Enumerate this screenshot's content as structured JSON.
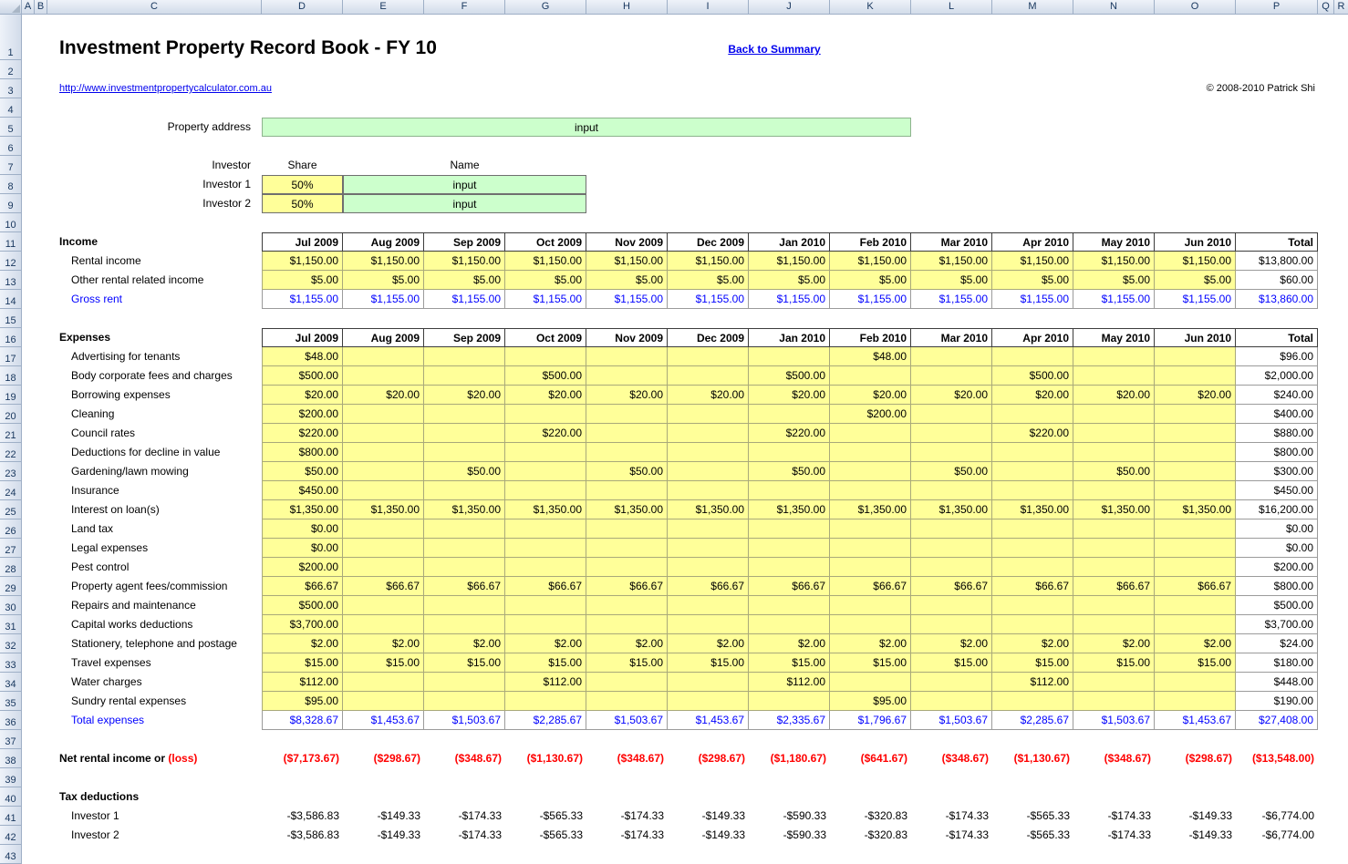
{
  "app": {
    "columns": [
      "A",
      "B",
      "C",
      "D",
      "E",
      "F",
      "G",
      "H",
      "I",
      "J",
      "K",
      "L",
      "M",
      "N",
      "O",
      "P",
      "Q",
      "R"
    ],
    "visible_rows": 43
  },
  "colors": {
    "input_yellow": "#FFFF99",
    "input_green": "#CCFFCC",
    "total_blue": "#0000FF",
    "loss_red": "#FF0000",
    "link_blue": "#0000EE"
  },
  "header": {
    "title": "Investment Property Record Book - FY 10",
    "back_link": "Back to Summary",
    "website": "http://www.investmentpropertycalculator.com.au",
    "copyright": "© 2008-2010 Patrick Shi"
  },
  "property": {
    "label": "Property address",
    "value": "input"
  },
  "investors": {
    "header_investor": "Investor",
    "header_share": "Share",
    "header_name": "Name",
    "rows": [
      {
        "label": "Investor 1",
        "share": "50%",
        "name": "input"
      },
      {
        "label": "Investor 2",
        "share": "50%",
        "name": "input"
      }
    ]
  },
  "months": [
    "Jul 2009",
    "Aug 2009",
    "Sep 2009",
    "Oct 2009",
    "Nov 2009",
    "Dec 2009",
    "Jan 2010",
    "Feb 2010",
    "Mar 2010",
    "Apr 2010",
    "May 2010",
    "Jun 2010"
  ],
  "total_label": "Total",
  "income": {
    "section_label": "Income",
    "rows": [
      {
        "label": "Rental income",
        "style": "input",
        "values": [
          "$1,150.00",
          "$1,150.00",
          "$1,150.00",
          "$1,150.00",
          "$1,150.00",
          "$1,150.00",
          "$1,150.00",
          "$1,150.00",
          "$1,150.00",
          "$1,150.00",
          "$1,150.00",
          "$1,150.00"
        ],
        "total": "$13,800.00"
      },
      {
        "label": "Other rental related income",
        "style": "input",
        "values": [
          "$5.00",
          "$5.00",
          "$5.00",
          "$5.00",
          "$5.00",
          "$5.00",
          "$5.00",
          "$5.00",
          "$5.00",
          "$5.00",
          "$5.00",
          "$5.00"
        ],
        "total": "$60.00"
      },
      {
        "label": "Gross rent",
        "style": "subtotal",
        "values": [
          "$1,155.00",
          "$1,155.00",
          "$1,155.00",
          "$1,155.00",
          "$1,155.00",
          "$1,155.00",
          "$1,155.00",
          "$1,155.00",
          "$1,155.00",
          "$1,155.00",
          "$1,155.00",
          "$1,155.00"
        ],
        "total": "$13,860.00"
      }
    ]
  },
  "expenses": {
    "section_label": "Expenses",
    "rows": [
      {
        "label": "Advertising for tenants",
        "style": "input",
        "values": [
          "$48.00",
          "",
          "",
          "",
          "",
          "",
          "",
          "$48.00",
          "",
          "",
          "",
          ""
        ],
        "total": "$96.00"
      },
      {
        "label": "Body corporate fees and charges",
        "style": "input",
        "values": [
          "$500.00",
          "",
          "",
          "$500.00",
          "",
          "",
          "$500.00",
          "",
          "",
          "$500.00",
          "",
          ""
        ],
        "total": "$2,000.00"
      },
      {
        "label": "Borrowing expenses",
        "style": "input",
        "values": [
          "$20.00",
          "$20.00",
          "$20.00",
          "$20.00",
          "$20.00",
          "$20.00",
          "$20.00",
          "$20.00",
          "$20.00",
          "$20.00",
          "$20.00",
          "$20.00"
        ],
        "total": "$240.00"
      },
      {
        "label": "Cleaning",
        "style": "input",
        "values": [
          "$200.00",
          "",
          "",
          "",
          "",
          "",
          "",
          "$200.00",
          "",
          "",
          "",
          ""
        ],
        "total": "$400.00"
      },
      {
        "label": "Council rates",
        "style": "input",
        "values": [
          "$220.00",
          "",
          "",
          "$220.00",
          "",
          "",
          "$220.00",
          "",
          "",
          "$220.00",
          "",
          ""
        ],
        "total": "$880.00"
      },
      {
        "label": "Deductions for decline in value",
        "style": "input",
        "values": [
          "$800.00",
          "",
          "",
          "",
          "",
          "",
          "",
          "",
          "",
          "",
          "",
          ""
        ],
        "total": "$800.00"
      },
      {
        "label": "Gardening/lawn mowing",
        "style": "input",
        "values": [
          "$50.00",
          "",
          "$50.00",
          "",
          "$50.00",
          "",
          "$50.00",
          "",
          "$50.00",
          "",
          "$50.00",
          ""
        ],
        "total": "$300.00"
      },
      {
        "label": "Insurance",
        "style": "input",
        "values": [
          "$450.00",
          "",
          "",
          "",
          "",
          "",
          "",
          "",
          "",
          "",
          "",
          ""
        ],
        "total": "$450.00"
      },
      {
        "label": "Interest on loan(s)",
        "style": "input",
        "values": [
          "$1,350.00",
          "$1,350.00",
          "$1,350.00",
          "$1,350.00",
          "$1,350.00",
          "$1,350.00",
          "$1,350.00",
          "$1,350.00",
          "$1,350.00",
          "$1,350.00",
          "$1,350.00",
          "$1,350.00"
        ],
        "total": "$16,200.00"
      },
      {
        "label": "Land tax",
        "style": "input",
        "values": [
          "$0.00",
          "",
          "",
          "",
          "",
          "",
          "",
          "",
          "",
          "",
          "",
          ""
        ],
        "total": "$0.00"
      },
      {
        "label": "Legal expenses",
        "style": "input",
        "values": [
          "$0.00",
          "",
          "",
          "",
          "",
          "",
          "",
          "",
          "",
          "",
          "",
          ""
        ],
        "total": "$0.00"
      },
      {
        "label": "Pest control",
        "style": "input",
        "values": [
          "$200.00",
          "",
          "",
          "",
          "",
          "",
          "",
          "",
          "",
          "",
          "",
          ""
        ],
        "total": "$200.00"
      },
      {
        "label": "Property agent fees/commission",
        "style": "input",
        "values": [
          "$66.67",
          "$66.67",
          "$66.67",
          "$66.67",
          "$66.67",
          "$66.67",
          "$66.67",
          "$66.67",
          "$66.67",
          "$66.67",
          "$66.67",
          "$66.67"
        ],
        "total": "$800.00"
      },
      {
        "label": "Repairs and maintenance",
        "style": "input",
        "values": [
          "$500.00",
          "",
          "",
          "",
          "",
          "",
          "",
          "",
          "",
          "",
          "",
          ""
        ],
        "total": "$500.00"
      },
      {
        "label": "Capital works deductions",
        "style": "input",
        "values": [
          "$3,700.00",
          "",
          "",
          "",
          "",
          "",
          "",
          "",
          "",
          "",
          "",
          ""
        ],
        "total": "$3,700.00"
      },
      {
        "label": "Stationery, telephone and postage",
        "style": "input",
        "values": [
          "$2.00",
          "$2.00",
          "$2.00",
          "$2.00",
          "$2.00",
          "$2.00",
          "$2.00",
          "$2.00",
          "$2.00",
          "$2.00",
          "$2.00",
          "$2.00"
        ],
        "total": "$24.00"
      },
      {
        "label": "Travel expenses",
        "style": "input",
        "values": [
          "$15.00",
          "$15.00",
          "$15.00",
          "$15.00",
          "$15.00",
          "$15.00",
          "$15.00",
          "$15.00",
          "$15.00",
          "$15.00",
          "$15.00",
          "$15.00"
        ],
        "total": "$180.00"
      },
      {
        "label": "Water charges",
        "style": "input",
        "values": [
          "$112.00",
          "",
          "",
          "$112.00",
          "",
          "",
          "$112.00",
          "",
          "",
          "$112.00",
          "",
          ""
        ],
        "total": "$448.00"
      },
      {
        "label": "Sundry rental expenses",
        "style": "input",
        "values": [
          "$95.00",
          "",
          "",
          "",
          "",
          "",
          "",
          "$95.00",
          "",
          "",
          "",
          ""
        ],
        "total": "$190.00"
      },
      {
        "label": "Total expenses",
        "style": "subtotal",
        "values": [
          "$8,328.67",
          "$1,453.67",
          "$1,503.67",
          "$2,285.67",
          "$1,503.67",
          "$1,453.67",
          "$2,335.67",
          "$1,796.67",
          "$1,503.67",
          "$2,285.67",
          "$1,503.67",
          "$1,453.67"
        ],
        "total": "$27,408.00"
      }
    ]
  },
  "net": {
    "label_black": "Net rental income or ",
    "label_red": "(loss)",
    "values": [
      "($7,173.67)",
      "($298.67)",
      "($348.67)",
      "($1,130.67)",
      "($348.67)",
      "($298.67)",
      "($1,180.67)",
      "($641.67)",
      "($348.67)",
      "($1,130.67)",
      "($348.67)",
      "($298.67)"
    ],
    "total": "($13,548.00)"
  },
  "tax": {
    "section_label": "Tax deductions",
    "rows": [
      {
        "label": "Investor 1",
        "values": [
          "-$3,586.83",
          "-$149.33",
          "-$174.33",
          "-$565.33",
          "-$174.33",
          "-$149.33",
          "-$590.33",
          "-$320.83",
          "-$174.33",
          "-$565.33",
          "-$174.33",
          "-$149.33"
        ],
        "total": "-$6,774.00"
      },
      {
        "label": "Investor 2",
        "values": [
          "-$3,586.83",
          "-$149.33",
          "-$174.33",
          "-$565.33",
          "-$174.33",
          "-$149.33",
          "-$590.33",
          "-$320.83",
          "-$174.33",
          "-$565.33",
          "-$174.33",
          "-$149.33"
        ],
        "total": "-$6,774.00"
      }
    ]
  }
}
